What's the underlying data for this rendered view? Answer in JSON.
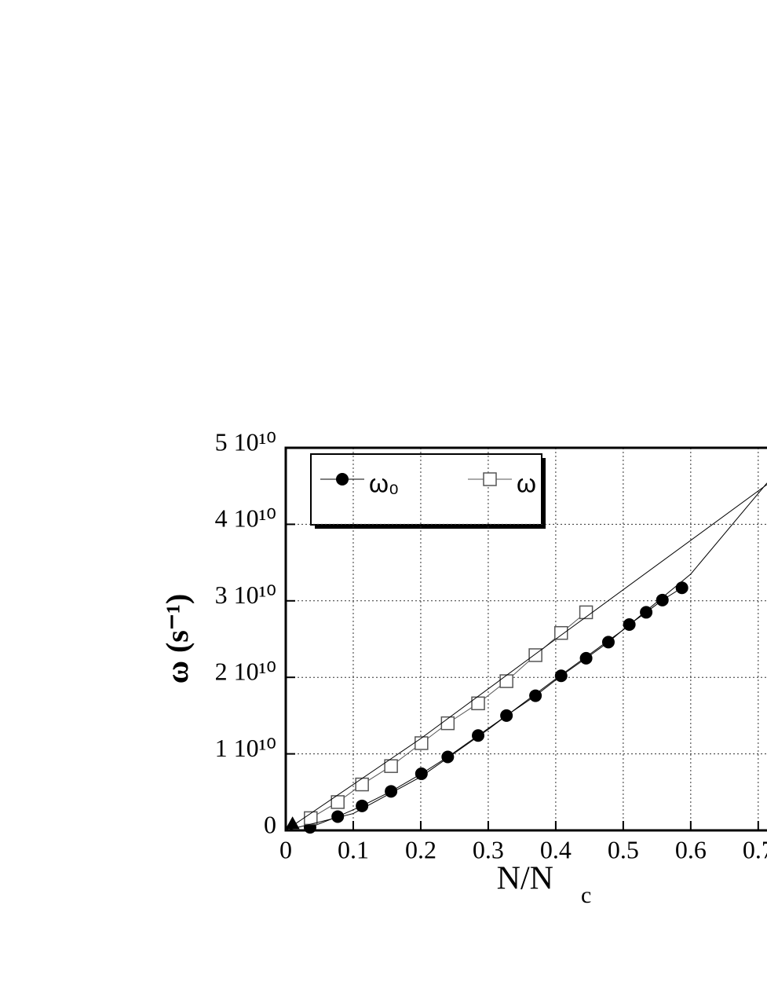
{
  "chart_data": {
    "type": "line",
    "x_label": {
      "main": "N/N",
      "sub": "c"
    },
    "y_label": "ω (s⁻¹)",
    "xlim": [
      0,
      0.713
    ],
    "ylim": [
      0,
      50000000000
    ],
    "xticks": [
      0,
      0.1,
      0.2,
      0.3,
      0.4,
      0.5,
      0.6,
      0.7
    ],
    "yticks": [
      {
        "value": 0,
        "label": "0"
      },
      {
        "value": 10000000000,
        "label": "1 10¹⁰"
      },
      {
        "value": 20000000000,
        "label": "2 10¹⁰"
      },
      {
        "value": 30000000000,
        "label": "3 10¹⁰"
      },
      {
        "value": 40000000000,
        "label": "4 10¹⁰"
      },
      {
        "value": 50000000000,
        "label": "5 10¹⁰"
      }
    ],
    "grid": true,
    "legend": "top-left",
    "series": [
      {
        "name": "ω₀",
        "color": "#000000",
        "marker": "filled-circle",
        "x": [
          0.036,
          0.077,
          0.113,
          0.156,
          0.201,
          0.24,
          0.285,
          0.327,
          0.37,
          0.408,
          0.445,
          0.478,
          0.509,
          0.534,
          0.558,
          0.587
        ],
        "values": [
          400000000,
          1800000000,
          3200000000,
          5100000000,
          7400000000,
          9600000000,
          12400000000,
          15000000000,
          17600000000,
          20200000000,
          22500000000,
          24600000000,
          26900000000,
          28500000000,
          30100000000,
          31700000000
        ]
      },
      {
        "name": "ω",
        "color": "#555555",
        "marker": "open-square",
        "x": [
          0.037,
          0.077,
          0.113,
          0.156,
          0.201,
          0.24,
          0.285,
          0.327,
          0.37,
          0.408,
          0.445
        ],
        "values": [
          1600000000,
          3700000000,
          6000000000,
          8400000000,
          11400000000,
          14000000000,
          16600000000,
          19500000000,
          22900000000,
          25800000000,
          28500000000
        ]
      },
      {
        "color": "#000000",
        "marker": "none",
        "x": [
          0,
          0.2,
          0.4,
          0.713
        ],
        "values": [
          0,
          12000000000,
          25000000000,
          45200000000
        ]
      },
      {
        "color": "#000000",
        "marker": "none",
        "x": [
          0,
          0.1,
          0.2,
          0.3,
          0.4,
          0.5,
          0.6,
          0.713
        ],
        "values": [
          0,
          2200000000,
          7000000000,
          13200000000,
          19800000000,
          26200000000,
          33500000000,
          45400000000
        ]
      },
      {
        "color": "#000000",
        "marker": "filled-triangle",
        "x": [
          0.01
        ],
        "values": [
          900000000
        ]
      }
    ]
  }
}
